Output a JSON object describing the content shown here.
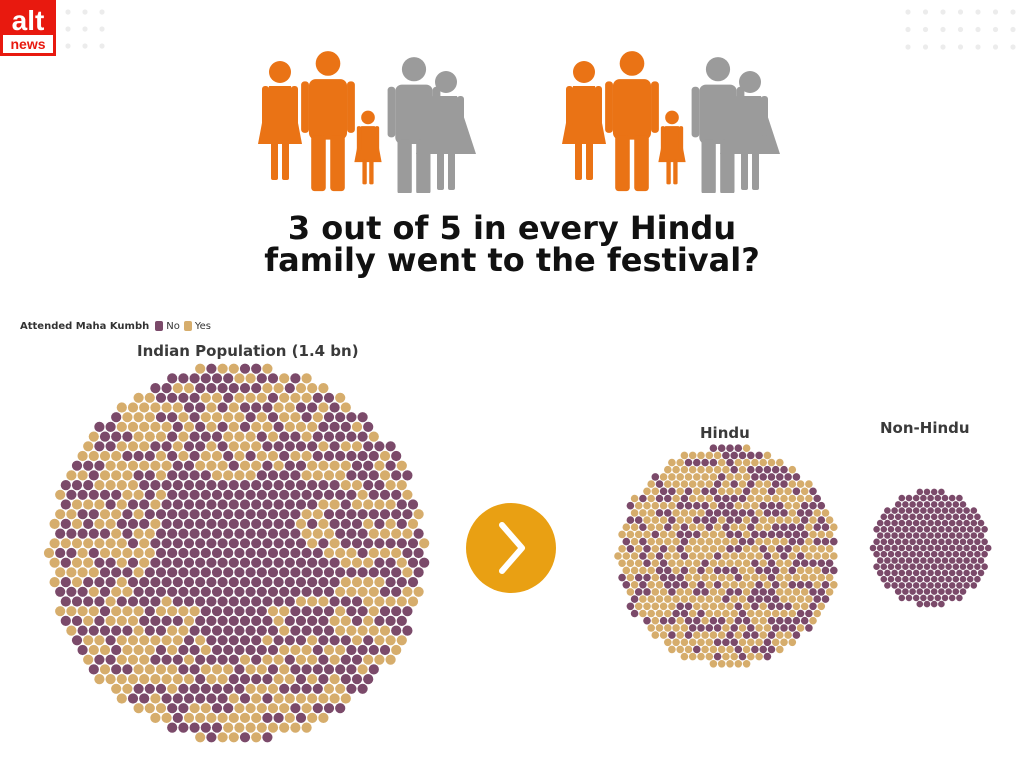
{
  "logo": {
    "top": "alt",
    "bottom": "news",
    "color": "#e8190f"
  },
  "headline": {
    "line1": "3 out of 5 in every Hindu",
    "line2": "family went to the festival?"
  },
  "family_icons": {
    "figures": [
      {
        "role": "woman",
        "attended": true
      },
      {
        "role": "man",
        "attended": true
      },
      {
        "role": "girl",
        "attended": true
      },
      {
        "role": "elder-man",
        "attended": false
      },
      {
        "role": "elder-woman",
        "attended": false
      }
    ],
    "attended_color": "#ea7315",
    "not_attended_color": "#9b9b9b"
  },
  "colors": {
    "no": "#7b4a6a",
    "yes": "#d6ad6c",
    "arrow": "#e9a013"
  },
  "chart_data": {
    "type": "scatter",
    "style": "packed circle dot clusters",
    "legend": {
      "title": "Attended Maha Kumbh",
      "entries": [
        {
          "label": "No",
          "color": "#7b4a6a"
        },
        {
          "label": "Yes",
          "color": "#d6ad6c"
        }
      ]
    },
    "clusters": [
      {
        "title": "Indian Population (1.4 bn)",
        "yes_share": 0.52
      },
      {
        "title": "Hindu",
        "yes_share": 0.6
      },
      {
        "title": "Non-Hindu",
        "yes_share": 0.0
      }
    ]
  }
}
